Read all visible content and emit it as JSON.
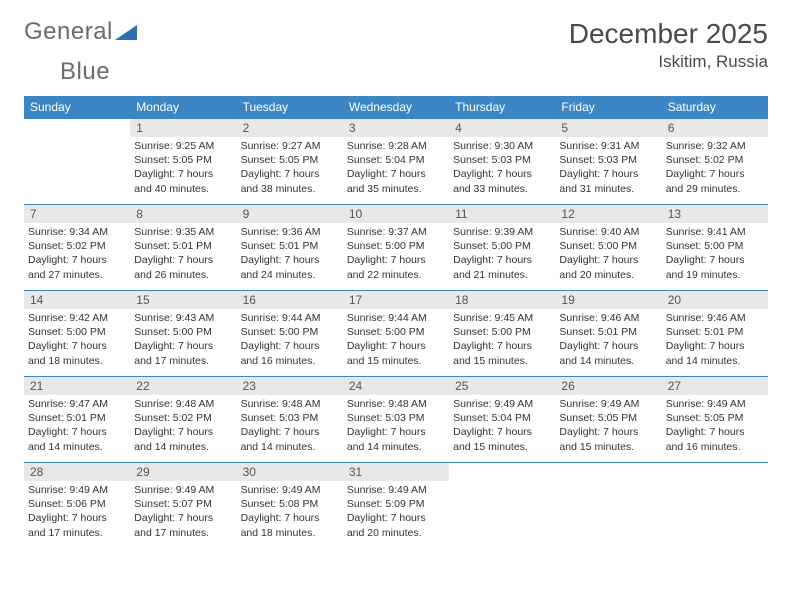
{
  "brand": {
    "name_part1": "General",
    "name_part2": "Blue"
  },
  "title": "December 2025",
  "location": "Iskitim, Russia",
  "colors": {
    "header_bg": "#3d86c6",
    "header_text": "#ffffff",
    "daynum_bg": "#e8e8e8",
    "border": "#3d86c6",
    "logo_gray": "#6b6b6b",
    "logo_blue": "#2f6fb0"
  },
  "typography": {
    "title_fontsize": 28,
    "location_fontsize": 17,
    "weekday_fontsize": 12,
    "daynum_fontsize": 12,
    "body_fontsize": 10.5
  },
  "weekdays": [
    "Sunday",
    "Monday",
    "Tuesday",
    "Wednesday",
    "Thursday",
    "Friday",
    "Saturday"
  ],
  "weeks": [
    [
      {
        "n": "",
        "sr": "",
        "ss": "",
        "dl": ""
      },
      {
        "n": "1",
        "sr": "9:25 AM",
        "ss": "5:05 PM",
        "dl": "7 hours and 40 minutes."
      },
      {
        "n": "2",
        "sr": "9:27 AM",
        "ss": "5:05 PM",
        "dl": "7 hours and 38 minutes."
      },
      {
        "n": "3",
        "sr": "9:28 AM",
        "ss": "5:04 PM",
        "dl": "7 hours and 35 minutes."
      },
      {
        "n": "4",
        "sr": "9:30 AM",
        "ss": "5:03 PM",
        "dl": "7 hours and 33 minutes."
      },
      {
        "n": "5",
        "sr": "9:31 AM",
        "ss": "5:03 PM",
        "dl": "7 hours and 31 minutes."
      },
      {
        "n": "6",
        "sr": "9:32 AM",
        "ss": "5:02 PM",
        "dl": "7 hours and 29 minutes."
      }
    ],
    [
      {
        "n": "7",
        "sr": "9:34 AM",
        "ss": "5:02 PM",
        "dl": "7 hours and 27 minutes."
      },
      {
        "n": "8",
        "sr": "9:35 AM",
        "ss": "5:01 PM",
        "dl": "7 hours and 26 minutes."
      },
      {
        "n": "9",
        "sr": "9:36 AM",
        "ss": "5:01 PM",
        "dl": "7 hours and 24 minutes."
      },
      {
        "n": "10",
        "sr": "9:37 AM",
        "ss": "5:00 PM",
        "dl": "7 hours and 22 minutes."
      },
      {
        "n": "11",
        "sr": "9:39 AM",
        "ss": "5:00 PM",
        "dl": "7 hours and 21 minutes."
      },
      {
        "n": "12",
        "sr": "9:40 AM",
        "ss": "5:00 PM",
        "dl": "7 hours and 20 minutes."
      },
      {
        "n": "13",
        "sr": "9:41 AM",
        "ss": "5:00 PM",
        "dl": "7 hours and 19 minutes."
      }
    ],
    [
      {
        "n": "14",
        "sr": "9:42 AM",
        "ss": "5:00 PM",
        "dl": "7 hours and 18 minutes."
      },
      {
        "n": "15",
        "sr": "9:43 AM",
        "ss": "5:00 PM",
        "dl": "7 hours and 17 minutes."
      },
      {
        "n": "16",
        "sr": "9:44 AM",
        "ss": "5:00 PM",
        "dl": "7 hours and 16 minutes."
      },
      {
        "n": "17",
        "sr": "9:44 AM",
        "ss": "5:00 PM",
        "dl": "7 hours and 15 minutes."
      },
      {
        "n": "18",
        "sr": "9:45 AM",
        "ss": "5:00 PM",
        "dl": "7 hours and 15 minutes."
      },
      {
        "n": "19",
        "sr": "9:46 AM",
        "ss": "5:01 PM",
        "dl": "7 hours and 14 minutes."
      },
      {
        "n": "20",
        "sr": "9:46 AM",
        "ss": "5:01 PM",
        "dl": "7 hours and 14 minutes."
      }
    ],
    [
      {
        "n": "21",
        "sr": "9:47 AM",
        "ss": "5:01 PM",
        "dl": "7 hours and 14 minutes."
      },
      {
        "n": "22",
        "sr": "9:48 AM",
        "ss": "5:02 PM",
        "dl": "7 hours and 14 minutes."
      },
      {
        "n": "23",
        "sr": "9:48 AM",
        "ss": "5:03 PM",
        "dl": "7 hours and 14 minutes."
      },
      {
        "n": "24",
        "sr": "9:48 AM",
        "ss": "5:03 PM",
        "dl": "7 hours and 14 minutes."
      },
      {
        "n": "25",
        "sr": "9:49 AM",
        "ss": "5:04 PM",
        "dl": "7 hours and 15 minutes."
      },
      {
        "n": "26",
        "sr": "9:49 AM",
        "ss": "5:05 PM",
        "dl": "7 hours and 15 minutes."
      },
      {
        "n": "27",
        "sr": "9:49 AM",
        "ss": "5:05 PM",
        "dl": "7 hours and 16 minutes."
      }
    ],
    [
      {
        "n": "28",
        "sr": "9:49 AM",
        "ss": "5:06 PM",
        "dl": "7 hours and 17 minutes."
      },
      {
        "n": "29",
        "sr": "9:49 AM",
        "ss": "5:07 PM",
        "dl": "7 hours and 17 minutes."
      },
      {
        "n": "30",
        "sr": "9:49 AM",
        "ss": "5:08 PM",
        "dl": "7 hours and 18 minutes."
      },
      {
        "n": "31",
        "sr": "9:49 AM",
        "ss": "5:09 PM",
        "dl": "7 hours and 20 minutes."
      },
      {
        "n": "",
        "sr": "",
        "ss": "",
        "dl": ""
      },
      {
        "n": "",
        "sr": "",
        "ss": "",
        "dl": ""
      },
      {
        "n": "",
        "sr": "",
        "ss": "",
        "dl": ""
      }
    ]
  ],
  "labels": {
    "sunrise": "Sunrise:",
    "sunset": "Sunset:",
    "daylight": "Daylight:"
  }
}
